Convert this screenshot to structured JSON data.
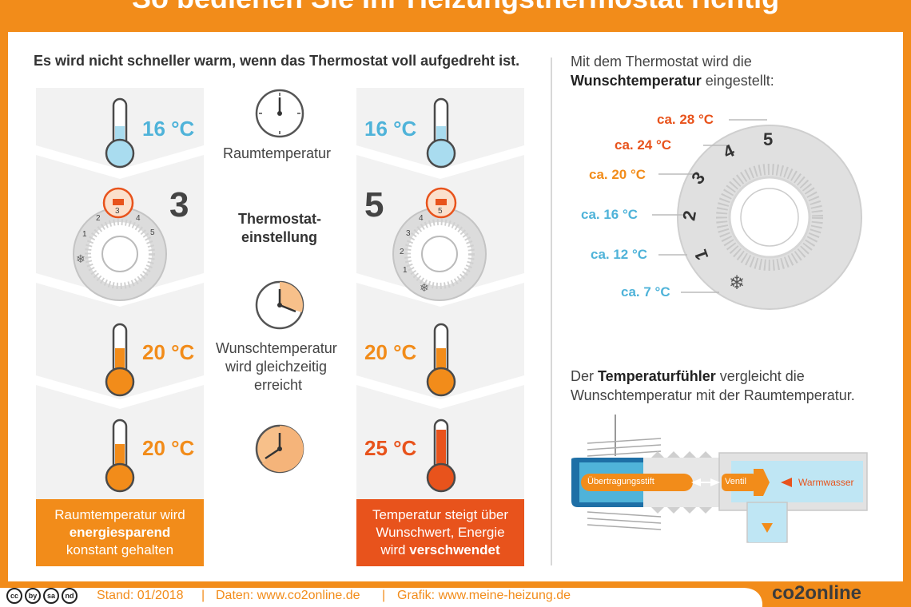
{
  "title": "So bedienen Sie Ihr Heizungsthermostat richtig",
  "headline": "Es wird nicht schneller warm, wenn das Thermostat voll aufgedreht ist.",
  "middle": {
    "raumtemperatur": "Raumtemperatur",
    "thermostat_line1": "Thermostat-",
    "thermostat_line2": "einstellung",
    "wunsch_line1": "Wunschtemperatur",
    "wunsch_line2": "wird gleichzeitig",
    "wunsch_line3": "erreicht"
  },
  "left_column": {
    "temp_start": "16 °C",
    "setting": "3",
    "temp_mid": "20 °C",
    "temp_end": "20 °C",
    "caption_line1": "Raumtemperatur wird",
    "caption_bold": "energiesparend",
    "caption_line3": "konstant gehalten"
  },
  "right_column": {
    "temp_start": "16 °C",
    "setting": "5",
    "temp_mid": "20 °C",
    "temp_end": "25 °C",
    "caption_line1": "Temperatur steigt über",
    "caption_line2": "Wunschwert, Energie",
    "caption_plain": "wird ",
    "caption_bold": "verschwendet"
  },
  "dial_small_numbers": [
    "1",
    "2",
    "3",
    "4",
    "5"
  ],
  "dial_legend": {
    "intro_line1": "Mit dem Thermostat wird die",
    "intro_bold": "Wunschtemperatur",
    "intro_plain": " eingestellt:",
    "labels": [
      "ca. 28 °C",
      "ca. 24 °C",
      "ca. 20 °C",
      "ca. 16 °C",
      "ca. 12 °C",
      "ca. 7 °C"
    ],
    "numbers": [
      "5",
      "4",
      "3",
      "2",
      "1"
    ]
  },
  "sensor": {
    "line1_plain": "Der ",
    "line1_bold": "Temperaturfühler",
    "line1_rest": " vergleicht die",
    "line2": "Wunschtemperatur mit der Raumtemperatur.",
    "label_pin": "Übertragungsstift",
    "label_valve": "Ventil",
    "label_water": "Warmwasser"
  },
  "footer": {
    "stand": "Stand: 01/2018",
    "daten": "Daten: www.co2online.de",
    "grafik": "Grafik: www.meine-heizung.de",
    "logo": "co2online",
    "license_icons": [
      "cc",
      "by",
      "sa",
      "nd"
    ]
  },
  "colors": {
    "orange": "#f28c1a",
    "red_orange": "#e8531c",
    "blue": "#4fb3d9",
    "light_blue": "#a9dcef",
    "dark": "#3c3c3c",
    "grey_bg": "#f2f2f2"
  },
  "icons": {
    "clock": "clock-icon",
    "thermometer": "thermometer-icon",
    "snowflake": "snowflake-icon"
  },
  "clock_progress": [
    0,
    0.3,
    0.65
  ]
}
